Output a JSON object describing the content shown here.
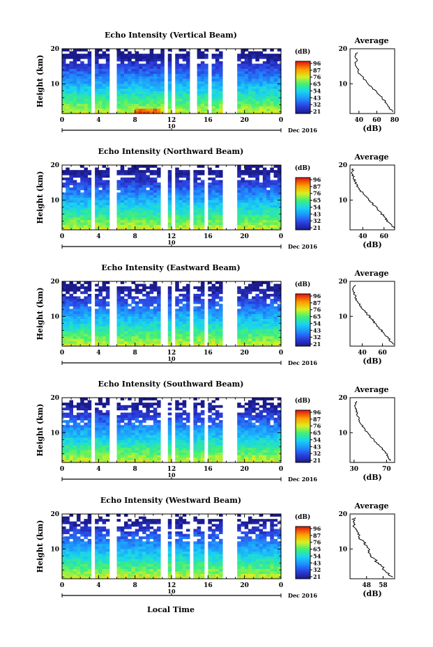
{
  "figure": {
    "xlabel": "Local Time",
    "height_label": "Height (km)",
    "date_label": "Dec 2016",
    "date_marker": "10",
    "avg_title": "Average",
    "avg_xlabel": "(dB)",
    "colorbar_unit": "(dB)"
  },
  "chart_data": [
    {
      "type": "heatmap",
      "title": "Echo Intensity (Vertical Beam)",
      "ylabel": "Height (km)",
      "x_ticks": [
        "0",
        "4",
        "8",
        "12",
        "16",
        "20",
        "0"
      ],
      "y_ticks": [
        "20",
        "10"
      ],
      "xlim": [
        0,
        24
      ],
      "ylim": [
        1.5,
        20
      ],
      "colorbar": {
        "unit": "(dB)",
        "ticks": [
          "96",
          "87",
          "76",
          "65",
          "54",
          "43",
          "32",
          "21"
        ]
      },
      "gaps": [
        [
          3.4,
          3.7
        ],
        [
          5.4,
          6.0
        ],
        [
          11.2,
          11.6
        ],
        [
          12.0,
          12.4
        ],
        [
          13.9,
          14.8
        ],
        [
          16.0,
          16.3
        ],
        [
          17.6,
          19.0
        ]
      ],
      "average_profile": {
        "xlabel": "(dB)",
        "x_ticks": [
          "40",
          "60",
          "80"
        ],
        "xlim": [
          30,
          80
        ],
        "y_ticks": [
          "20",
          "10"
        ],
        "ylim": [
          1.5,
          20
        ],
        "height_km": [
          2,
          3,
          4,
          5,
          6,
          7,
          8,
          9,
          10,
          11,
          12,
          13,
          14,
          15,
          16,
          17,
          18,
          19
        ],
        "value_db": [
          79,
          74,
          71,
          69,
          66,
          62,
          58,
          54,
          50,
          47,
          44,
          40,
          39,
          36,
          36,
          38,
          35,
          38
        ]
      }
    },
    {
      "type": "heatmap",
      "title": "Echo Intensity (Northward Beam)",
      "ylabel": "Height (km)",
      "x_ticks": [
        "0",
        "4",
        "8",
        "12",
        "16",
        "20",
        "0"
      ],
      "y_ticks": [
        "20",
        "10"
      ],
      "xlim": [
        0,
        24
      ],
      "ylim": [
        1.5,
        20
      ],
      "colorbar": {
        "unit": "(dB)",
        "ticks": [
          "96",
          "87",
          "76",
          "65",
          "54",
          "43",
          "32",
          "21"
        ]
      },
      "gaps": [
        [
          3.4,
          3.7
        ],
        [
          5.4,
          6.0
        ],
        [
          11.0,
          11.4
        ],
        [
          12.0,
          12.4
        ],
        [
          13.9,
          14.3
        ],
        [
          15.8,
          16.1
        ],
        [
          17.6,
          19.0
        ]
      ],
      "average_profile": {
        "xlabel": "(dB)",
        "x_ticks": [
          "40",
          "60"
        ],
        "xlim": [
          28,
          70
        ],
        "y_ticks": [
          "20",
          "10"
        ],
        "ylim": [
          1.5,
          20
        ],
        "height_km": [
          2,
          3,
          4,
          5,
          6,
          7,
          8,
          9,
          10,
          11,
          12,
          13,
          14,
          15,
          16,
          17,
          18,
          19
        ],
        "value_db": [
          70,
          67,
          63,
          61,
          58,
          55,
          52,
          49,
          46,
          43,
          40,
          37,
          35,
          33,
          32,
          31,
          30,
          31
        ]
      }
    },
    {
      "type": "heatmap",
      "title": "Echo Intensity (Eastward Beam)",
      "ylabel": "Height (km)",
      "x_ticks": [
        "0",
        "4",
        "8",
        "12",
        "16",
        "20",
        "0"
      ],
      "y_ticks": [
        "20",
        "10"
      ],
      "xlim": [
        0,
        24
      ],
      "ylim": [
        1.5,
        20
      ],
      "colorbar": {
        "unit": "(dB)",
        "ticks": [
          "96",
          "87",
          "76",
          "65",
          "54",
          "43",
          "32",
          "21"
        ]
      },
      "gaps": [
        [
          3.4,
          3.7
        ],
        [
          5.4,
          6.0
        ],
        [
          11.0,
          11.4
        ],
        [
          12.0,
          12.4
        ],
        [
          13.9,
          14.3
        ],
        [
          15.6,
          16.0
        ],
        [
          17.6,
          19.0
        ]
      ],
      "average_profile": {
        "xlabel": "(dB)",
        "x_ticks": [
          "40",
          "60"
        ],
        "xlim": [
          28,
          72
        ],
        "y_ticks": [
          "20",
          "10"
        ],
        "ylim": [
          1.5,
          20
        ],
        "height_km": [
          2,
          3,
          4,
          5,
          6,
          7,
          8,
          9,
          10,
          11,
          12,
          13,
          14,
          15,
          16,
          17,
          18,
          19
        ],
        "value_db": [
          71,
          68,
          65,
          62,
          59,
          56,
          53,
          50,
          47,
          44,
          41,
          38,
          36,
          34,
          33,
          32,
          31,
          33
        ]
      }
    },
    {
      "type": "heatmap",
      "title": "Echo Intensity (Southward Beam)",
      "ylabel": "Height (km)",
      "x_ticks": [
        "0",
        "4",
        "8",
        "12",
        "16",
        "20",
        "0"
      ],
      "y_ticks": [
        "20",
        "10"
      ],
      "xlim": [
        0,
        24
      ],
      "ylim": [
        1.5,
        20
      ],
      "colorbar": {
        "unit": "(dB)",
        "ticks": [
          "96",
          "87",
          "76",
          "65",
          "54",
          "43",
          "32",
          "21"
        ]
      },
      "gaps": [
        [
          3.4,
          3.7
        ],
        [
          5.4,
          6.0
        ],
        [
          11.0,
          11.4
        ],
        [
          12.0,
          12.4
        ],
        [
          13.9,
          14.3
        ],
        [
          15.6,
          16.0
        ],
        [
          17.6,
          19.0
        ]
      ],
      "average_profile": {
        "xlabel": "(dB)",
        "x_ticks": [
          "30",
          "70"
        ],
        "xlim": [
          25,
          80
        ],
        "y_ticks": [
          "20",
          "10"
        ],
        "ylim": [
          1.5,
          20
        ],
        "height_km": [
          2,
          3,
          4,
          5,
          6,
          7,
          8,
          9,
          10,
          11,
          12,
          13,
          14,
          15,
          16,
          17,
          18,
          19
        ],
        "value_db": [
          75,
          72,
          70,
          66,
          62,
          58,
          54,
          50,
          46,
          43,
          40,
          37,
          36,
          34,
          33,
          32,
          31,
          33
        ]
      }
    },
    {
      "type": "heatmap",
      "title": "Echo Intensity (Westward Beam)",
      "ylabel": "Height (km)",
      "x_ticks": [
        "0",
        "4",
        "8",
        "12",
        "16",
        "20",
        "0"
      ],
      "y_ticks": [
        "20",
        "10"
      ],
      "xlim": [
        0,
        24
      ],
      "ylim": [
        1.5,
        20
      ],
      "colorbar": {
        "unit": "(dB)",
        "ticks": [
          "96",
          "87",
          "76",
          "65",
          "54",
          "43",
          "32",
          "21"
        ]
      },
      "gaps": [
        [
          3.4,
          3.7
        ],
        [
          5.4,
          6.0
        ],
        [
          11.0,
          11.4
        ],
        [
          12.0,
          12.4
        ],
        [
          13.9,
          14.3
        ],
        [
          15.6,
          16.0
        ],
        [
          17.6,
          19.0
        ]
      ],
      "average_profile": {
        "xlabel": "(dB)",
        "x_ticks": [
          "48",
          "58"
        ],
        "xlim": [
          38,
          65
        ],
        "y_ticks": [
          "20",
          "10"
        ],
        "ylim": [
          1.5,
          20
        ],
        "height_km": [
          2,
          3,
          4,
          5,
          6,
          7,
          8,
          9,
          10,
          11,
          12,
          13,
          14,
          15,
          16,
          17,
          18,
          19
        ],
        "value_db": [
          63,
          61,
          59,
          57,
          55,
          53,
          51,
          50,
          49,
          48,
          46,
          44,
          43,
          42,
          41,
          40,
          40,
          41
        ]
      }
    }
  ]
}
